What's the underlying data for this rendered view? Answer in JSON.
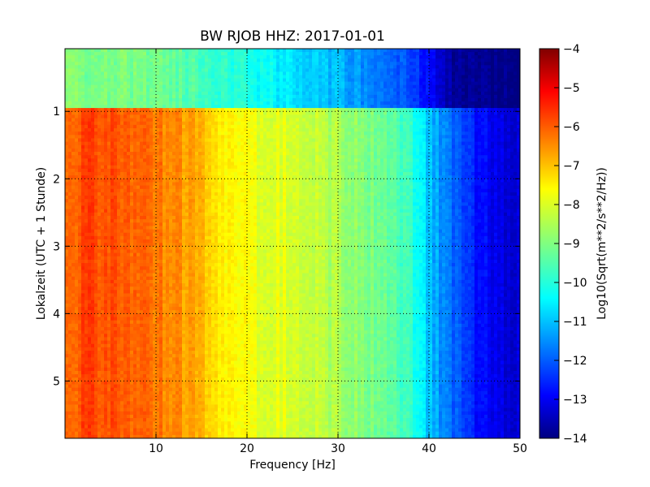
{
  "chart_data": {
    "type": "heatmap",
    "title": "BW RJOB HHZ: 2017-01-01",
    "xlabel": "Frequency [Hz]",
    "ylabel": "Lokalzeit (UTC + 1 Stunde)",
    "xlim": [
      0,
      50
    ],
    "ylim": [
      0.07,
      5.85
    ],
    "y_inverted": true,
    "x_ticks": [
      10,
      20,
      30,
      40,
      50
    ],
    "y_ticks": [
      1,
      2,
      3,
      4,
      5
    ],
    "grid": true,
    "colormap": "jet",
    "colorbar": {
      "label": "Log10(Sqrt(m**2/s**2/Hz))",
      "min": -14,
      "max": -4,
      "ticks": [
        -4,
        -5,
        -6,
        -7,
        -8,
        -9,
        -10,
        -11,
        -12,
        -13,
        -14
      ]
    },
    "regions": [
      {
        "time_range": [
          0.07,
          0.95
        ],
        "frequency_hz": [
          0,
          5,
          10,
          15,
          20,
          25,
          30,
          35,
          38,
          40,
          42,
          45,
          50
        ],
        "level": [
          -9.0,
          -9.0,
          -9.2,
          -9.5,
          -10.0,
          -10.5,
          -11.0,
          -11.6,
          -12.0,
          -12.7,
          -13.6,
          -13.9,
          -14.0
        ]
      },
      {
        "time_range": [
          0.95,
          5.85
        ],
        "frequency_hz": [
          0,
          2,
          5,
          10,
          15,
          17,
          20,
          25,
          30,
          35,
          38,
          40,
          42,
          45,
          48,
          50
        ],
        "level": [
          -6.4,
          -5.9,
          -6.0,
          -6.4,
          -7.0,
          -7.6,
          -7.9,
          -8.1,
          -8.6,
          -9.2,
          -9.8,
          -10.8,
          -11.6,
          -12.6,
          -13.0,
          -13.2
        ]
      }
    ]
  }
}
